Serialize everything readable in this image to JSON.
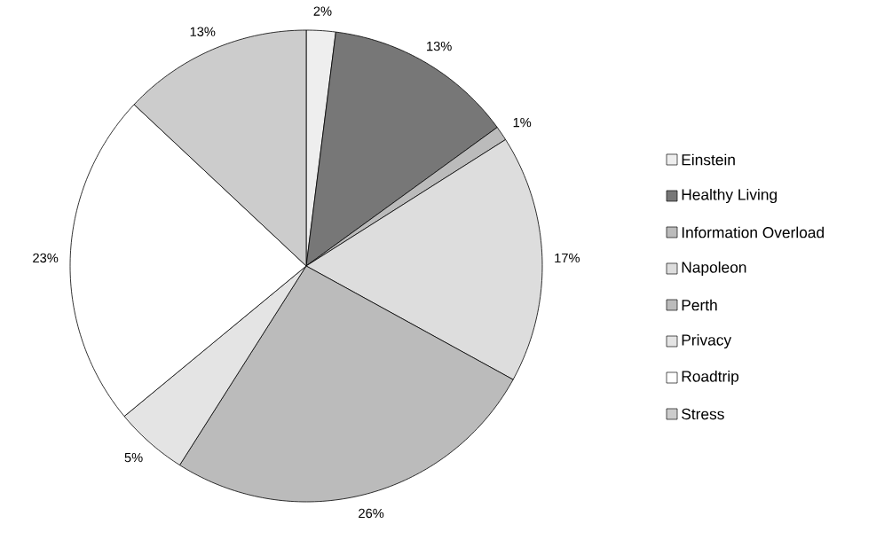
{
  "chart_data": {
    "type": "pie",
    "categories": [
      "Einstein",
      "Healthy Living",
      "Information Overload",
      "Napoleon",
      "Perth",
      "Privacy",
      "Roadtrip",
      "Stress"
    ],
    "values": [
      2,
      13,
      1,
      17,
      26,
      5,
      23,
      13
    ],
    "value_labels": [
      "2%",
      "13%",
      "1%",
      "17%",
      "26%",
      "5%",
      "23%",
      "13%"
    ],
    "colors": [
      "#eeeeee",
      "#777777",
      "#bbbbbb",
      "#dddddd",
      "#bbbbbb",
      "#e4e4e4",
      "#ffffff",
      "#cccccc"
    ],
    "legend": "right"
  }
}
